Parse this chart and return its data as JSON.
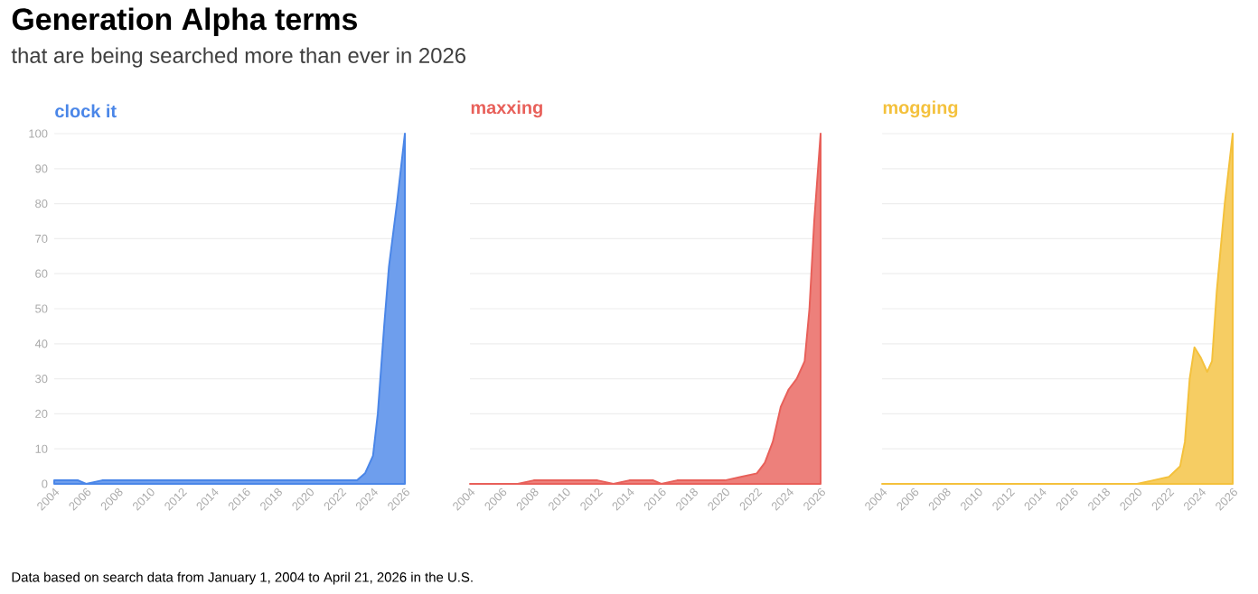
{
  "chart_data": [
    {
      "type": "area",
      "title": "Generation Alpha terms",
      "subtitle": "that are being searched more than ever in 2026",
      "annotations": [
        "Data based on search data from January 1, 2004 to April 21, 2026 in the U.S."
      ],
      "grid": "y",
      "xlim": [
        2004,
        2026
      ],
      "ylim": [
        0,
        100
      ],
      "xticks": [
        2004,
        2006,
        2008,
        2010,
        2012,
        2014,
        2016,
        2018,
        2020,
        2022,
        2024,
        2026
      ],
      "yticks": [
        0,
        10,
        20,
        30,
        40,
        50,
        60,
        70,
        80,
        90,
        100
      ],
      "series": [
        {
          "name": "clock it",
          "color": "#4a86e8",
          "x": [
            2004,
            2005,
            2005.5,
            2006,
            2007,
            2023,
            2023.5,
            2024,
            2024.3,
            2024.7,
            2025,
            2025.5,
            2026
          ],
          "values": [
            1,
            1,
            1,
            0,
            1,
            1,
            3,
            8,
            20,
            45,
            62,
            80,
            100
          ]
        }
      ]
    },
    {
      "type": "area",
      "grid": "y",
      "tick_labels": "x",
      "xlim": [
        2004,
        2026
      ],
      "ylim": [
        0,
        100
      ],
      "xticks": [
        2004,
        2006,
        2008,
        2010,
        2012,
        2014,
        2016,
        2018,
        2020,
        2022,
        2024,
        2026
      ],
      "yticks": [
        0,
        10,
        20,
        30,
        40,
        50,
        60,
        70,
        80,
        90,
        100
      ],
      "series": [
        {
          "name": "maxxing",
          "color": "#e8605a",
          "x": [
            2004,
            2007,
            2008,
            2012,
            2013,
            2014,
            2015.5,
            2016,
            2017,
            2020,
            2021,
            2022,
            2022.5,
            2023,
            2023.5,
            2024,
            2024.5,
            2025,
            2025.3,
            2025.6,
            2026
          ],
          "values": [
            0,
            0,
            1,
            1,
            0,
            1,
            1,
            0,
            1,
            1,
            2,
            3,
            6,
            12,
            22,
            27,
            30,
            35,
            50,
            75,
            100
          ]
        }
      ]
    },
    {
      "type": "area",
      "grid": "y",
      "tick_labels": "x",
      "xlim": [
        2004,
        2026
      ],
      "ylim": [
        0,
        100
      ],
      "xticks": [
        2004,
        2006,
        2008,
        2010,
        2012,
        2014,
        2016,
        2018,
        2020,
        2022,
        2024,
        2026
      ],
      "yticks": [
        0,
        10,
        20,
        30,
        40,
        50,
        60,
        70,
        80,
        90,
        100
      ],
      "series": [
        {
          "name": "mogging",
          "color": "#f4c13c",
          "x": [
            2004,
            2020,
            2021,
            2022,
            2022.7,
            2023,
            2023.3,
            2023.6,
            2024,
            2024.4,
            2024.7,
            2025,
            2025.5,
            2026
          ],
          "values": [
            0,
            0,
            1,
            2,
            5,
            12,
            30,
            39,
            36,
            32,
            35,
            55,
            80,
            100
          ]
        }
      ]
    }
  ]
}
